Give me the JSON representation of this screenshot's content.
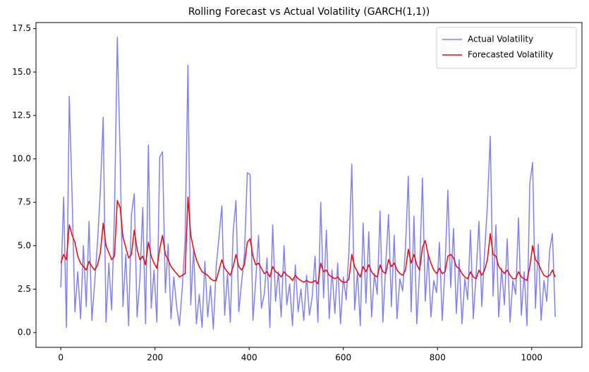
{
  "chart_data": {
    "type": "line",
    "title": "Rolling Forecast vs Actual Volatility (GARCH(1,1))",
    "x": [
      0,
      6,
      12,
      18,
      24,
      30,
      36,
      42,
      48,
      54,
      60,
      66,
      72,
      78,
      84,
      90,
      96,
      102,
      108,
      114,
      120,
      126,
      132,
      138,
      144,
      150,
      156,
      162,
      168,
      174,
      180,
      186,
      192,
      198,
      204,
      210,
      216,
      222,
      228,
      234,
      240,
      246,
      252,
      258,
      264,
      270,
      276,
      282,
      288,
      294,
      300,
      306,
      312,
      318,
      324,
      330,
      336,
      342,
      348,
      354,
      360,
      366,
      372,
      378,
      384,
      390,
      396,
      402,
      408,
      414,
      420,
      426,
      432,
      438,
      444,
      450,
      456,
      462,
      468,
      474,
      480,
      486,
      492,
      498,
      504,
      510,
      516,
      522,
      528,
      534,
      540,
      546,
      552,
      558,
      564,
      570,
      576,
      582,
      588,
      594,
      600,
      606,
      612,
      618,
      624,
      630,
      636,
      642,
      648,
      654,
      660,
      666,
      672,
      678,
      684,
      690,
      696,
      702,
      708,
      714,
      720,
      726,
      732,
      738,
      744,
      750,
      756,
      762,
      768,
      774,
      780,
      786,
      792,
      798,
      804,
      810,
      816,
      822,
      828,
      834,
      840,
      846,
      852,
      858,
      864,
      870,
      876,
      882,
      888,
      894,
      900,
      906,
      912,
      918,
      924,
      930,
      936,
      942,
      948,
      954,
      960,
      966,
      972,
      978,
      984,
      990,
      996,
      1002,
      1008,
      1014,
      1020,
      1026,
      1032,
      1038,
      1044,
      1050
    ],
    "series": [
      {
        "name": "Actual Volatility",
        "color": "#8080ff",
        "values": [
          2.6,
          7.8,
          0.3,
          13.6,
          7.9,
          1.2,
          3.5,
          0.8,
          5.0,
          1.5,
          6.4,
          0.7,
          2.9,
          5.2,
          8.2,
          12.4,
          0.6,
          4.0,
          1.3,
          6.9,
          17.0,
          10.2,
          1.5,
          4.5,
          0.4,
          6.8,
          8.0,
          0.9,
          3.1,
          7.2,
          0.5,
          10.8,
          1.4,
          3.6,
          0.6,
          10.1,
          10.4,
          2.3,
          5.1,
          0.8,
          3.2,
          1.5,
          0.4,
          2.6,
          5.3,
          15.4,
          1.6,
          4.8,
          0.5,
          2.2,
          0.3,
          4.1,
          0.9,
          2.7,
          0.2,
          3.8,
          5.5,
          7.3,
          1.0,
          3.4,
          0.6,
          5.8,
          7.6,
          1.2,
          2.9,
          4.5,
          9.2,
          9.1,
          0.7,
          3.0,
          5.6,
          1.4,
          2.2,
          4.3,
          0.3,
          6.2,
          1.8,
          3.5,
          0.9,
          5.0,
          1.6,
          2.8,
          0.4,
          3.9,
          1.2,
          2.5,
          0.7,
          3.3,
          1.0,
          2.1,
          4.4,
          0.6,
          7.5,
          2.0,
          5.9,
          0.8,
          3.6,
          1.1,
          4.0,
          0.5,
          3.2,
          1.9,
          4.7,
          9.7,
          1.3,
          3.5,
          0.4,
          6.3,
          1.7,
          5.8,
          0.9,
          3.4,
          2.2,
          7.0,
          0.6,
          3.9,
          6.8,
          1.5,
          5.6,
          0.8,
          3.1,
          2.4,
          4.9,
          9.0,
          1.2,
          6.7,
          0.5,
          3.6,
          8.9,
          1.8,
          4.5,
          0.9,
          3.0,
          2.3,
          5.2,
          0.7,
          3.8,
          8.2,
          2.6,
          6.0,
          1.1,
          4.2,
          0.5,
          3.1,
          1.9,
          5.9,
          0.8,
          3.4,
          6.4,
          1.5,
          4.6,
          7.4,
          11.3,
          2.1,
          6.2,
          0.9,
          3.7,
          1.6,
          5.4,
          0.6,
          3.0,
          2.2,
          6.6,
          1.0,
          3.5,
          0.4,
          8.6,
          9.8,
          1.4,
          5.1,
          0.7,
          3.0,
          1.8,
          4.7,
          5.7,
          0.9
        ]
      },
      {
        "name": "Forecasted Volatility",
        "color": "#ff0000",
        "values": [
          4.0,
          4.5,
          4.2,
          6.2,
          5.6,
          5.2,
          4.4,
          4.0,
          3.8,
          3.6,
          4.1,
          3.8,
          3.6,
          3.9,
          4.6,
          6.3,
          5.0,
          4.6,
          4.2,
          4.4,
          7.6,
          7.2,
          5.5,
          4.9,
          4.3,
          4.5,
          5.9,
          4.8,
          4.2,
          4.4,
          3.9,
          5.2,
          4.4,
          4.0,
          3.7,
          4.8,
          5.6,
          4.5,
          4.2,
          3.8,
          3.6,
          3.4,
          3.2,
          3.3,
          3.4,
          7.8,
          5.6,
          4.8,
          4.2,
          3.8,
          3.5,
          3.4,
          3.3,
          3.1,
          3.0,
          3.0,
          3.6,
          4.2,
          3.7,
          3.5,
          3.3,
          3.8,
          4.5,
          3.8,
          3.6,
          3.9,
          5.2,
          5.4,
          4.4,
          3.9,
          4.0,
          3.7,
          3.4,
          3.5,
          3.2,
          3.8,
          3.5,
          3.4,
          3.2,
          3.5,
          3.3,
          3.2,
          3.0,
          3.3,
          3.1,
          3.0,
          2.9,
          3.0,
          2.9,
          2.9,
          3.0,
          2.8,
          4.0,
          3.5,
          3.6,
          3.3,
          3.2,
          3.1,
          3.2,
          3.0,
          2.9,
          2.9,
          3.1,
          4.5,
          3.8,
          3.5,
          3.2,
          3.8,
          3.5,
          3.9,
          3.5,
          3.3,
          3.2,
          3.9,
          3.5,
          3.4,
          4.2,
          3.8,
          4.0,
          3.6,
          3.4,
          3.3,
          3.6,
          4.8,
          4.0,
          4.5,
          3.9,
          3.6,
          4.9,
          5.3,
          4.5,
          4.0,
          3.6,
          3.4,
          3.7,
          3.4,
          3.5,
          4.4,
          4.5,
          4.3,
          3.8,
          3.7,
          3.4,
          3.2,
          3.1,
          3.5,
          3.2,
          3.1,
          3.6,
          3.3,
          3.6,
          4.2,
          5.7,
          4.5,
          4.4,
          3.8,
          3.6,
          3.4,
          3.6,
          3.3,
          3.1,
          3.1,
          3.5,
          3.2,
          3.1,
          3.0,
          3.8,
          5.0,
          4.2,
          4.0,
          3.6,
          3.3,
          3.2,
          3.3,
          3.6,
          3.2
        ]
      }
    ],
    "xlim": [
      -52.7,
      1106.7
    ],
    "xticks": [
      0,
      200,
      400,
      600,
      800,
      1000
    ],
    "ylim": [
      -0.85,
      17.85
    ],
    "yticks": [
      {
        "value": 0,
        "label": "0.0"
      },
      {
        "value": 2.5,
        "label": "2.5"
      },
      {
        "value": 5,
        "label": "5.0"
      },
      {
        "value": 7.5,
        "label": "7.5"
      },
      {
        "value": 10,
        "label": "10.0"
      },
      {
        "value": 12.5,
        "label": "12.5"
      },
      {
        "value": 15,
        "label": "15.0"
      },
      {
        "value": 17.5,
        "label": "17.5"
      }
    ],
    "grid": false,
    "legend": "upper right"
  }
}
